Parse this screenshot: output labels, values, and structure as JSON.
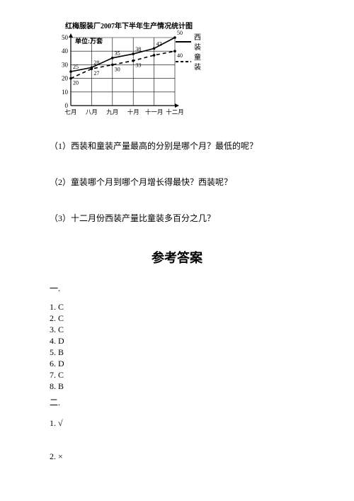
{
  "chart": {
    "title": "红梅服装厂2007年下半年生产情况统计图",
    "unit_label": "单位:万套",
    "type": "line",
    "x_categories": [
      "七月",
      "八月",
      "九月",
      "十月",
      "十一月",
      "十二月"
    ],
    "y_ticks": [
      0,
      10,
      20,
      30,
      40,
      50
    ],
    "ylim": [
      0,
      50
    ],
    "grid_color": "#000000",
    "background_color": "#ffffff",
    "axis_fontsize": 9,
    "series": [
      {
        "name": "西装",
        "dash": "solid",
        "color": "#000000",
        "values": [
          25,
          28,
          35,
          38,
          42,
          50
        ],
        "labels": [
          "25",
          "28",
          "35",
          "38",
          "42",
          "50"
        ]
      },
      {
        "name": "童装",
        "dash": "dashed",
        "color": "#000000",
        "values": [
          20,
          27,
          30,
          33,
          37,
          40
        ],
        "labels": [
          "20",
          "27",
          "30",
          "33",
          "",
          "40"
        ]
      }
    ],
    "legend": {
      "items": [
        "西装",
        "童装"
      ]
    },
    "plot": {
      "width": 150,
      "height": 95
    }
  },
  "questions": {
    "q1": "（1）西装和童装产量最高的分别是哪个月？最低的呢？",
    "q2": "（2）童装哪个月到哪个月增长得最快？西装呢？",
    "q3": "（3）十二月份西装产量比童装多百分之几？"
  },
  "answers": {
    "title": "参考答案",
    "sec1_head": "一.",
    "sec1": {
      "a1": "1. C",
      "a2": "2. C",
      "a3": "3. C",
      "a4": "4. D",
      "a5": "5. B",
      "a6": "6. D",
      "a7": "7. C",
      "a8": "8. B"
    },
    "sec2_head": "二.",
    "sec2": {
      "a1": "1. √",
      "a2": "2. ×"
    }
  }
}
